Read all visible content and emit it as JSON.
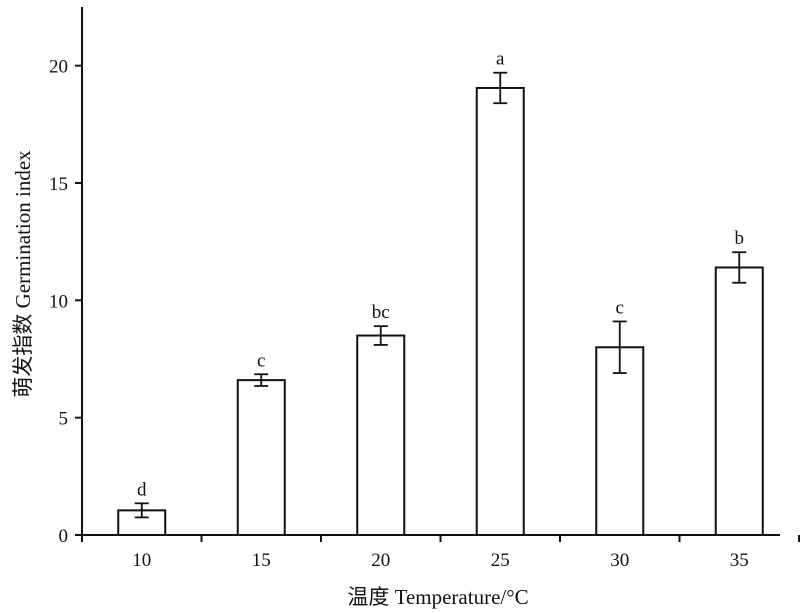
{
  "chart_data": {
    "type": "bar",
    "categories": [
      "10",
      "15",
      "20",
      "25",
      "30",
      "35"
    ],
    "values": [
      1.05,
      6.6,
      8.5,
      19.05,
      8.0,
      11.4
    ],
    "errors": [
      0.3,
      0.25,
      0.4,
      0.65,
      1.1,
      0.65
    ],
    "significance": [
      "d",
      "c",
      "bc",
      "a",
      "c",
      "b"
    ],
    "xlabel": "温度  Temperature/°C",
    "ylabel": "萌发指数  Germination index",
    "ylim": [
      0,
      22.5
    ],
    "yticks": [
      0,
      5,
      10,
      15,
      20
    ],
    "grid": false,
    "bar_fill": "#ffffff",
    "bar_stroke": "#111111"
  }
}
